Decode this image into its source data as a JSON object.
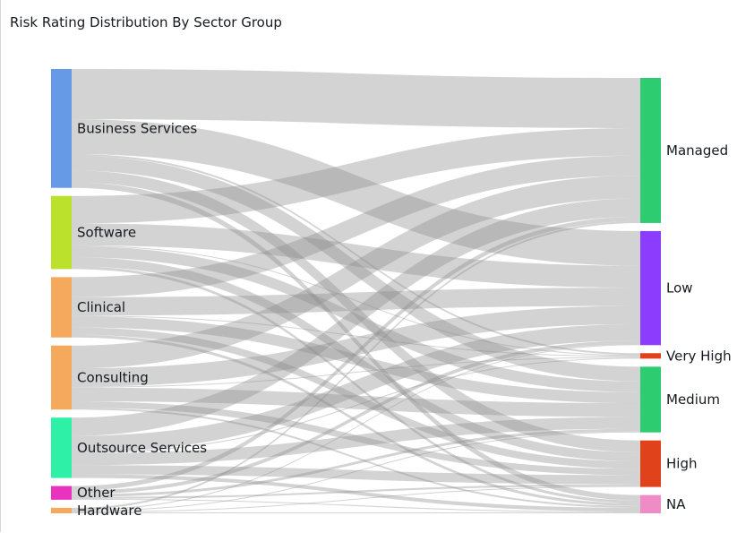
{
  "chart_data": {
    "type": "sankey",
    "title": "Risk Rating Distribution By Sector Group",
    "sources": [
      {
        "name": "Business Services",
        "color": "#6699e6"
      },
      {
        "name": "Software",
        "color": "#bbe12c"
      },
      {
        "name": "Clinical",
        "color": "#f5a95c"
      },
      {
        "name": "Consulting",
        "color": "#f5a95c"
      },
      {
        "name": "Outsource Services",
        "color": "#2ff0a7"
      },
      {
        "name": "Other",
        "color": "#e933be"
      },
      {
        "name": "Hardware",
        "color": "#f5a95c"
      }
    ],
    "targets": [
      {
        "name": "Managed",
        "color": "#2ecc71"
      },
      {
        "name": "Low",
        "color": "#8b3cfc"
      },
      {
        "name": "Very High",
        "color": "#e0421c"
      },
      {
        "name": "Medium",
        "color": "#2ecc71"
      },
      {
        "name": "High",
        "color": "#e0421c"
      },
      {
        "name": "NA",
        "color": "#ef8cc6"
      }
    ],
    "flows": [
      {
        "source": "Business Services",
        "target": "Managed",
        "value": 55
      },
      {
        "source": "Business Services",
        "target": "Low",
        "value": 38
      },
      {
        "source": "Business Services",
        "target": "Very High",
        "value": 2
      },
      {
        "source": "Business Services",
        "target": "Medium",
        "value": 16
      },
      {
        "source": "Business Services",
        "target": "High",
        "value": 13
      },
      {
        "source": "Business Services",
        "target": "NA",
        "value": 6
      },
      {
        "source": "Software",
        "target": "Managed",
        "value": 30
      },
      {
        "source": "Software",
        "target": "Low",
        "value": 24
      },
      {
        "source": "Software",
        "target": "Very High",
        "value": 1
      },
      {
        "source": "Software",
        "target": "Medium",
        "value": 12
      },
      {
        "source": "Software",
        "target": "High",
        "value": 10
      },
      {
        "source": "Software",
        "target": "NA",
        "value": 3
      },
      {
        "source": "Clinical",
        "target": "Managed",
        "value": 22
      },
      {
        "source": "Clinical",
        "target": "Low",
        "value": 20
      },
      {
        "source": "Clinical",
        "target": "Very High",
        "value": 1
      },
      {
        "source": "Clinical",
        "target": "Medium",
        "value": 12
      },
      {
        "source": "Clinical",
        "target": "High",
        "value": 8
      },
      {
        "source": "Clinical",
        "target": "NA",
        "value": 3
      },
      {
        "source": "Consulting",
        "target": "Managed",
        "value": 25
      },
      {
        "source": "Consulting",
        "target": "Low",
        "value": 20
      },
      {
        "source": "Consulting",
        "target": "Very High",
        "value": 1
      },
      {
        "source": "Consulting",
        "target": "Medium",
        "value": 15
      },
      {
        "source": "Consulting",
        "target": "High",
        "value": 7
      },
      {
        "source": "Consulting",
        "target": "NA",
        "value": 2
      },
      {
        "source": "Outsource Services",
        "target": "Managed",
        "value": 20
      },
      {
        "source": "Outsource Services",
        "target": "Low",
        "value": 18
      },
      {
        "source": "Outsource Services",
        "target": "Very High",
        "value": 1
      },
      {
        "source": "Outsource Services",
        "target": "Medium",
        "value": 13
      },
      {
        "source": "Outsource Services",
        "target": "High",
        "value": 10
      },
      {
        "source": "Outsource Services",
        "target": "NA",
        "value": 4
      },
      {
        "source": "Other",
        "target": "Managed",
        "value": 5
      },
      {
        "source": "Other",
        "target": "Low",
        "value": 4
      },
      {
        "source": "Other",
        "target": "Medium",
        "value": 3
      },
      {
        "source": "Other",
        "target": "High",
        "value": 2
      },
      {
        "source": "Other",
        "target": "NA",
        "value": 1
      },
      {
        "source": "Hardware",
        "target": "Managed",
        "value": 2
      },
      {
        "source": "Hardware",
        "target": "Low",
        "value": 1
      },
      {
        "source": "Hardware",
        "target": "Medium",
        "value": 1
      },
      {
        "source": "Hardware",
        "target": "High",
        "value": 1
      },
      {
        "source": "Hardware",
        "target": "NA",
        "value": 1
      }
    ]
  }
}
